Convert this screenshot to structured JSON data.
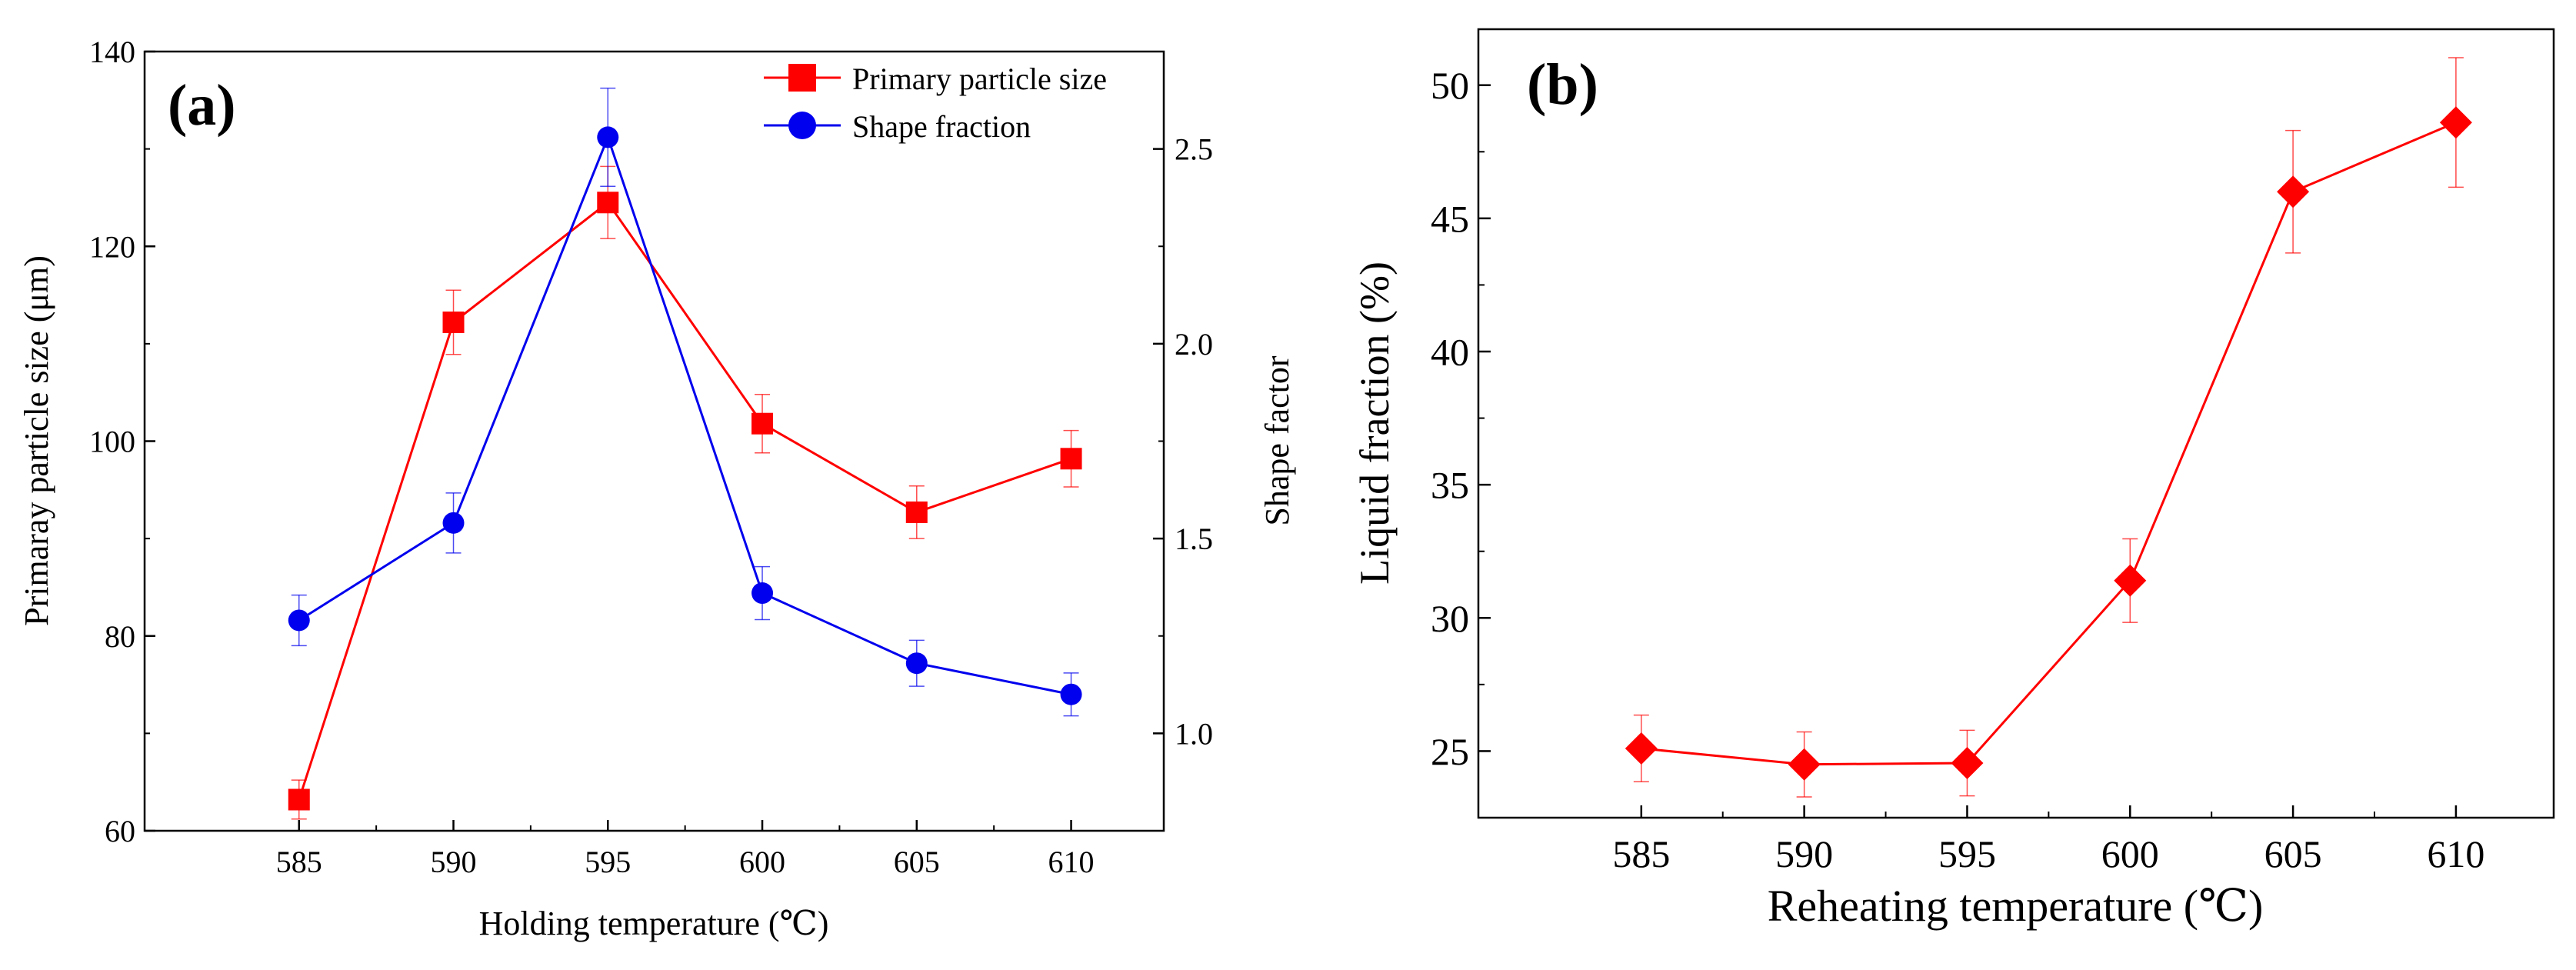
{
  "colors": {
    "primary_series": "#ff0000",
    "shape_series": "#0000ee",
    "axis": "#000000",
    "background": "#ffffff"
  },
  "chart_data": [
    {
      "panel_label": "(a)",
      "type": "line",
      "title": "",
      "xlabel": "Holding temperature (℃)",
      "ylabel": "Primaray particle size (μm)",
      "y2label": "Shape factor",
      "x": [
        585,
        590,
        595,
        600,
        605,
        610
      ],
      "xlim": [
        580,
        613
      ],
      "ylim": [
        60,
        140
      ],
      "y2lim": [
        0.75,
        2.75
      ],
      "x_ticks": [
        "585",
        "590",
        "595",
        "600",
        "605",
        "610"
      ],
      "y_ticks": [
        "60",
        "80",
        "100",
        "120",
        "140"
      ],
      "y2_ticks": [
        "1.0",
        "1.5",
        "2.0",
        "2.5"
      ],
      "legend_position": "top-right",
      "series": [
        {
          "name": "Primary particle size",
          "axis": "left",
          "marker": "square",
          "color": "#ff0000",
          "values": [
            63.2,
            112.2,
            124.5,
            101.8,
            92.7,
            98.2
          ],
          "errors": [
            2.0,
            3.3,
            3.7,
            3.0,
            2.7,
            2.9
          ]
        },
        {
          "name": "Shape fraction",
          "axis": "right",
          "marker": "circle",
          "color": "#0000ee",
          "values": [
            1.29,
            1.54,
            2.53,
            1.36,
            1.18,
            1.1
          ],
          "errors": [
            0.065,
            0.077,
            0.126,
            0.068,
            0.059,
            0.055
          ]
        }
      ]
    },
    {
      "panel_label": "(b)",
      "type": "line",
      "title": "",
      "xlabel": "Reheating temperature (℃)",
      "ylabel": "Liquid fraction (%)",
      "x": [
        585,
        590,
        595,
        600,
        605,
        610
      ],
      "xlim": [
        580,
        613
      ],
      "ylim": [
        22.5,
        52.1
      ],
      "x_ticks": [
        "585",
        "590",
        "595",
        "600",
        "605",
        "610"
      ],
      "y_ticks": [
        "25",
        "30",
        "35",
        "40",
        "45",
        "50"
      ],
      "series": [
        {
          "name": "Liquid fraction",
          "axis": "left",
          "marker": "diamond",
          "color": "#ff0000",
          "values": [
            25.1,
            24.5,
            24.55,
            31.4,
            46.0,
            48.6
          ],
          "errors": [
            1.25,
            1.22,
            1.23,
            1.57,
            2.3,
            2.43
          ]
        }
      ]
    }
  ]
}
